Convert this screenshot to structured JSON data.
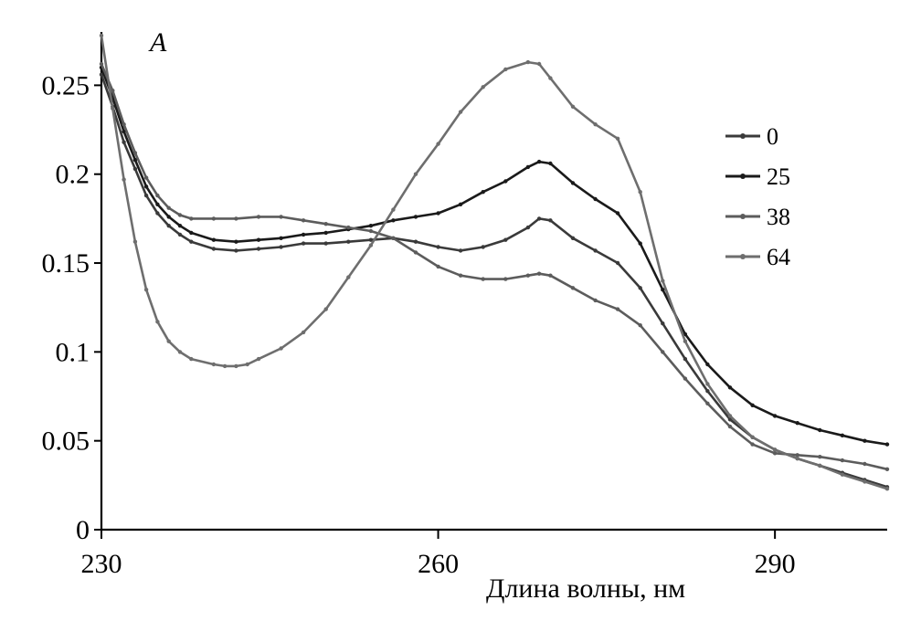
{
  "chart_data": {
    "type": "line",
    "title": "",
    "ylabel": "A",
    "xlabel": "Длина волны, нм",
    "xlim": [
      230,
      300
    ],
    "ylim": [
      0,
      0.28
    ],
    "x_ticks": [
      {
        "value": 230,
        "label": "230"
      },
      {
        "value": 260,
        "label": "260"
      },
      {
        "value": 290,
        "label": "290"
      }
    ],
    "y_ticks": [
      {
        "value": 0,
        "label": "0"
      },
      {
        "value": 0.05,
        "label": "0.05"
      },
      {
        "value": 0.1,
        "label": "0.1"
      },
      {
        "value": 0.15,
        "label": "0.15"
      },
      {
        "value": 0.2,
        "label": "0.2"
      },
      {
        "value": 0.25,
        "label": "0.25"
      }
    ],
    "legend_position": "right",
    "grid": false,
    "series": [
      {
        "name": "0",
        "color": "#3a3a3a",
        "points": [
          [
            230,
            0.256
          ],
          [
            231,
            0.238
          ],
          [
            232,
            0.218
          ],
          [
            233,
            0.203
          ],
          [
            234,
            0.188
          ],
          [
            235,
            0.178
          ],
          [
            236,
            0.171
          ],
          [
            237,
            0.166
          ],
          [
            238,
            0.162
          ],
          [
            240,
            0.158
          ],
          [
            242,
            0.157
          ],
          [
            244,
            0.158
          ],
          [
            246,
            0.159
          ],
          [
            248,
            0.161
          ],
          [
            250,
            0.161
          ],
          [
            252,
            0.162
          ],
          [
            254,
            0.163
          ],
          [
            256,
            0.164
          ],
          [
            258,
            0.162
          ],
          [
            260,
            0.159
          ],
          [
            262,
            0.157
          ],
          [
            264,
            0.159
          ],
          [
            266,
            0.163
          ],
          [
            268,
            0.17
          ],
          [
            269,
            0.175
          ],
          [
            270,
            0.174
          ],
          [
            272,
            0.164
          ],
          [
            274,
            0.157
          ],
          [
            276,
            0.15
          ],
          [
            278,
            0.136
          ],
          [
            280,
            0.116
          ],
          [
            282,
            0.096
          ],
          [
            284,
            0.078
          ],
          [
            286,
            0.062
          ],
          [
            288,
            0.052
          ],
          [
            290,
            0.045
          ],
          [
            292,
            0.04
          ],
          [
            294,
            0.036
          ],
          [
            296,
            0.032
          ],
          [
            298,
            0.028
          ],
          [
            300,
            0.024
          ]
        ]
      },
      {
        "name": "25",
        "color": "#1a1a1a",
        "points": [
          [
            230,
            0.26
          ],
          [
            231,
            0.243
          ],
          [
            232,
            0.224
          ],
          [
            233,
            0.208
          ],
          [
            234,
            0.193
          ],
          [
            235,
            0.183
          ],
          [
            236,
            0.176
          ],
          [
            237,
            0.171
          ],
          [
            238,
            0.167
          ],
          [
            240,
            0.163
          ],
          [
            242,
            0.162
          ],
          [
            244,
            0.163
          ],
          [
            246,
            0.164
          ],
          [
            248,
            0.166
          ],
          [
            250,
            0.167
          ],
          [
            252,
            0.169
          ],
          [
            254,
            0.171
          ],
          [
            256,
            0.174
          ],
          [
            258,
            0.176
          ],
          [
            260,
            0.178
          ],
          [
            262,
            0.183
          ],
          [
            264,
            0.19
          ],
          [
            266,
            0.196
          ],
          [
            268,
            0.204
          ],
          [
            269,
            0.207
          ],
          [
            270,
            0.206
          ],
          [
            272,
            0.195
          ],
          [
            274,
            0.186
          ],
          [
            276,
            0.178
          ],
          [
            278,
            0.161
          ],
          [
            280,
            0.135
          ],
          [
            282,
            0.11
          ],
          [
            284,
            0.093
          ],
          [
            286,
            0.08
          ],
          [
            288,
            0.07
          ],
          [
            290,
            0.064
          ],
          [
            292,
            0.06
          ],
          [
            294,
            0.056
          ],
          [
            296,
            0.053
          ],
          [
            298,
            0.05
          ],
          [
            300,
            0.048
          ]
        ]
      },
      {
        "name": "38",
        "color": "#5c5c5c",
        "points": [
          [
            230,
            0.262
          ],
          [
            231,
            0.247
          ],
          [
            232,
            0.228
          ],
          [
            233,
            0.212
          ],
          [
            234,
            0.198
          ],
          [
            235,
            0.188
          ],
          [
            236,
            0.181
          ],
          [
            237,
            0.177
          ],
          [
            238,
            0.175
          ],
          [
            240,
            0.175
          ],
          [
            242,
            0.175
          ],
          [
            244,
            0.176
          ],
          [
            246,
            0.176
          ],
          [
            248,
            0.174
          ],
          [
            250,
            0.172
          ],
          [
            252,
            0.17
          ],
          [
            254,
            0.168
          ],
          [
            256,
            0.164
          ],
          [
            258,
            0.156
          ],
          [
            260,
            0.148
          ],
          [
            262,
            0.143
          ],
          [
            264,
            0.141
          ],
          [
            266,
            0.141
          ],
          [
            268,
            0.143
          ],
          [
            269,
            0.144
          ],
          [
            270,
            0.143
          ],
          [
            272,
            0.136
          ],
          [
            274,
            0.129
          ],
          [
            276,
            0.124
          ],
          [
            278,
            0.115
          ],
          [
            280,
            0.1
          ],
          [
            282,
            0.085
          ],
          [
            284,
            0.071
          ],
          [
            286,
            0.058
          ],
          [
            288,
            0.048
          ],
          [
            290,
            0.043
          ],
          [
            292,
            0.042
          ],
          [
            294,
            0.041
          ],
          [
            296,
            0.039
          ],
          [
            298,
            0.037
          ],
          [
            300,
            0.034
          ]
        ]
      },
      {
        "name": "64",
        "color": "#6e6e6e",
        "points": [
          [
            230,
            0.278
          ],
          [
            231,
            0.237
          ],
          [
            232,
            0.197
          ],
          [
            233,
            0.162
          ],
          [
            234,
            0.135
          ],
          [
            235,
            0.117
          ],
          [
            236,
            0.106
          ],
          [
            237,
            0.1
          ],
          [
            238,
            0.096
          ],
          [
            240,
            0.093
          ],
          [
            241,
            0.092
          ],
          [
            242,
            0.092
          ],
          [
            243,
            0.093
          ],
          [
            244,
            0.096
          ],
          [
            246,
            0.102
          ],
          [
            248,
            0.111
          ],
          [
            250,
            0.124
          ],
          [
            252,
            0.142
          ],
          [
            254,
            0.16
          ],
          [
            256,
            0.18
          ],
          [
            258,
            0.2
          ],
          [
            260,
            0.217
          ],
          [
            262,
            0.235
          ],
          [
            264,
            0.249
          ],
          [
            266,
            0.259
          ],
          [
            268,
            0.263
          ],
          [
            269,
            0.262
          ],
          [
            270,
            0.254
          ],
          [
            272,
            0.238
          ],
          [
            274,
            0.228
          ],
          [
            276,
            0.22
          ],
          [
            278,
            0.19
          ],
          [
            280,
            0.14
          ],
          [
            282,
            0.106
          ],
          [
            284,
            0.082
          ],
          [
            286,
            0.064
          ],
          [
            288,
            0.052
          ],
          [
            290,
            0.045
          ],
          [
            292,
            0.04
          ],
          [
            294,
            0.036
          ],
          [
            296,
            0.031
          ],
          [
            298,
            0.027
          ],
          [
            300,
            0.023
          ]
        ]
      }
    ]
  }
}
